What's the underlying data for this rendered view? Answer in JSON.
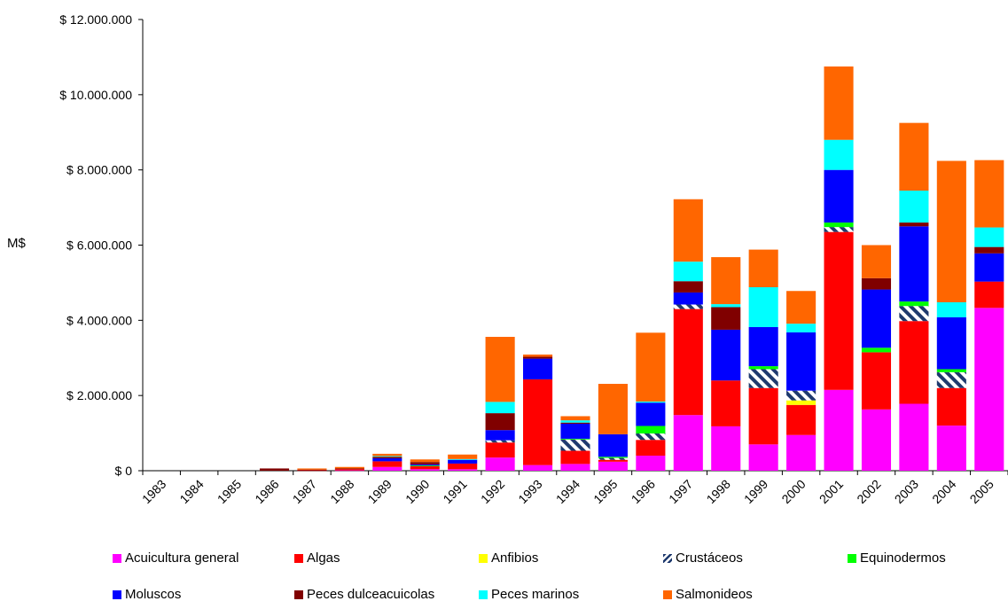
{
  "chart_data": {
    "type": "bar",
    "stacked": true,
    "ylabel": "M$",
    "ylim": [
      0,
      12000000
    ],
    "y_ticks": [
      "$ 0",
      "$ 2.000.000",
      "$ 4.000.000",
      "$ 6.000.000",
      "$ 8.000.000",
      "$ 10.000.000",
      "$ 12.000.000"
    ],
    "y_tick_values": [
      0,
      2000000,
      4000000,
      6000000,
      8000000,
      10000000,
      12000000
    ],
    "grid": false,
    "legend_position": "bottom",
    "categories": [
      "1983",
      "1984",
      "1985",
      "1986",
      "1987",
      "1988",
      "1989",
      "1990",
      "1991",
      "1992",
      "1993",
      "1994",
      "1995",
      "1996",
      "1997",
      "1998",
      "1999",
      "2000",
      "2001",
      "2002",
      "2003",
      "2004",
      "2005"
    ],
    "series": [
      {
        "name": "Acuicultura general",
        "color": "#ff00ff",
        "values": [
          0,
          0,
          0,
          0,
          0,
          10000,
          100000,
          40000,
          40000,
          350000,
          150000,
          180000,
          240000,
          400000,
          1480000,
          1180000,
          700000,
          950000,
          2150000,
          1630000,
          1780000,
          1200000,
          4330000
        ]
      },
      {
        "name": "Algas",
        "color": "#ff0000",
        "values": [
          0,
          0,
          0,
          0,
          10000,
          30000,
          150000,
          80000,
          150000,
          400000,
          2280000,
          350000,
          50000,
          420000,
          2820000,
          1220000,
          1500000,
          800000,
          4200000,
          1520000,
          2200000,
          1000000,
          700000
        ]
      },
      {
        "name": "Anfibios",
        "color": "#ffff00",
        "values": [
          0,
          0,
          0,
          0,
          0,
          0,
          0,
          0,
          0,
          0,
          0,
          0,
          0,
          0,
          0,
          0,
          0,
          120000,
          0,
          0,
          0,
          0,
          0
        ]
      },
      {
        "name": "Crustáceos",
        "color": "#1f3a6e",
        "pattern": "hatch",
        "values": [
          0,
          0,
          0,
          0,
          0,
          0,
          0,
          0,
          0,
          60000,
          0,
          300000,
          50000,
          170000,
          120000,
          0,
          500000,
          260000,
          130000,
          0,
          400000,
          420000,
          0
        ]
      },
      {
        "name": "Equinodermos",
        "color": "#00ff00",
        "values": [
          0,
          0,
          0,
          0,
          0,
          0,
          0,
          20000,
          0,
          0,
          0,
          20000,
          30000,
          200000,
          0,
          0,
          80000,
          0,
          120000,
          120000,
          120000,
          80000,
          0
        ]
      },
      {
        "name": "Moluscos",
        "color": "#0000ff",
        "values": [
          0,
          0,
          0,
          0,
          0,
          0,
          80000,
          30000,
          100000,
          270000,
          550000,
          400000,
          600000,
          620000,
          320000,
          1350000,
          1040000,
          1550000,
          1400000,
          1550000,
          2000000,
          1380000,
          750000
        ]
      },
      {
        "name": "Peces dulceacuicolas",
        "color": "#800000",
        "values": [
          0,
          0,
          0,
          60000,
          20000,
          20000,
          40000,
          60000,
          0,
          450000,
          50000,
          30000,
          0,
          0,
          300000,
          600000,
          0,
          0,
          0,
          300000,
          100000,
          0,
          170000
        ]
      },
      {
        "name": "Peces marinos",
        "color": "#00ffff",
        "values": [
          0,
          0,
          0,
          0,
          0,
          0,
          20000,
          0,
          20000,
          300000,
          0,
          60000,
          0,
          30000,
          520000,
          80000,
          1060000,
          230000,
          800000,
          0,
          850000,
          400000,
          520000
        ]
      },
      {
        "name": "Salmonideos",
        "color": "#ff6600",
        "values": [
          0,
          0,
          0,
          0,
          30000,
          40000,
          60000,
          70000,
          120000,
          1730000,
          60000,
          110000,
          1340000,
          1830000,
          1660000,
          1250000,
          1000000,
          870000,
          1950000,
          880000,
          1800000,
          3760000,
          1790000
        ]
      }
    ]
  }
}
